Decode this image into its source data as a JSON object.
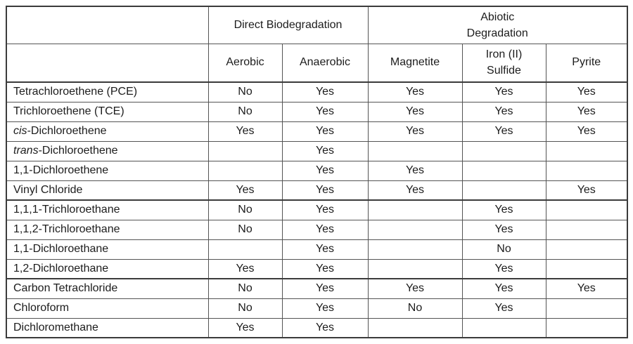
{
  "chart_data": {
    "type": "table",
    "title": "",
    "column_groups": [
      {
        "label": "",
        "span": 1
      },
      {
        "label": "Direct Biodegradation",
        "span": 2
      },
      {
        "label": "Abiotic Degradation",
        "span": 3
      }
    ],
    "header_two_line": {
      "abiotic": [
        "Abiotic",
        "Degradation"
      ],
      "iron_sulfide": [
        "Iron (II)",
        "Sulfide"
      ]
    },
    "columns": [
      "Aerobic",
      "Anaerobic",
      "Magnetite",
      "Iron (II) Sulfide",
      "Pyrite"
    ],
    "sections": [
      {
        "rows": [
          {
            "prefix": "",
            "compound": "Tetrachloroethene (PCE)",
            "values": [
              "No",
              "Yes",
              "Yes",
              "Yes",
              "Yes"
            ]
          },
          {
            "prefix": "",
            "compound": "Trichloroethene (TCE)",
            "values": [
              "No",
              "Yes",
              "Yes",
              "Yes",
              "Yes"
            ]
          },
          {
            "prefix": "cis",
            "compound": "-Dichloroethene",
            "values": [
              "Yes",
              "Yes",
              "Yes",
              "Yes",
              "Yes"
            ]
          },
          {
            "prefix": "trans",
            "compound": "-Dichloroethene",
            "values": [
              "",
              "Yes",
              "",
              "",
              ""
            ]
          },
          {
            "prefix": "",
            "compound": "1,1-Dichloroethene",
            "values": [
              "",
              "Yes",
              "Yes",
              "",
              ""
            ]
          },
          {
            "prefix": "",
            "compound": "Vinyl Chloride",
            "values": [
              "Yes",
              "Yes",
              "Yes",
              "",
              "Yes"
            ]
          }
        ]
      },
      {
        "rows": [
          {
            "prefix": "",
            "compound": "1,1,1-Trichloroethane",
            "values": [
              "No",
              "Yes",
              "",
              "Yes",
              ""
            ]
          },
          {
            "prefix": "",
            "compound": "1,1,2-Trichloroethane",
            "values": [
              "No",
              "Yes",
              "",
              "Yes",
              ""
            ]
          },
          {
            "prefix": "",
            "compound": "1,1-Dichloroethane",
            "values": [
              "",
              "Yes",
              "",
              "No",
              ""
            ]
          },
          {
            "prefix": "",
            "compound": "1,2-Dichloroethane",
            "values": [
              "Yes",
              "Yes",
              "",
              "Yes",
              ""
            ]
          }
        ]
      },
      {
        "rows": [
          {
            "prefix": "",
            "compound": "Carbon Tetrachloride",
            "values": [
              "No",
              "Yes",
              "Yes",
              "Yes",
              "Yes"
            ]
          },
          {
            "prefix": "",
            "compound": "Chloroform",
            "values": [
              "No",
              "Yes",
              "No",
              "Yes",
              ""
            ]
          },
          {
            "prefix": "",
            "compound": "Dichloromethane",
            "values": [
              "Yes",
              "Yes",
              "",
              "",
              ""
            ]
          }
        ]
      }
    ]
  }
}
